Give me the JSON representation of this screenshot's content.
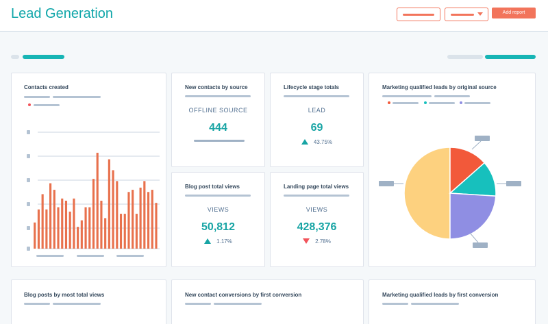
{
  "header": {
    "title": "Lead Generation",
    "add_report_label": "Add report",
    "accent_color": "#f2745b",
    "brand_color": "#0fa6a9"
  },
  "cards": {
    "contacts_created": {
      "title": "Contacts created"
    },
    "new_contacts_by_source": {
      "title": "New contacts by source",
      "stat_label": "OFFLINE SOURCE",
      "value": "444"
    },
    "lifecycle_stage_totals": {
      "title": "Lifecycle stage totals",
      "stat_label": "LEAD",
      "value": "69",
      "delta": "43.75%",
      "trend": "up"
    },
    "mql_by_original_source": {
      "title": "Marketing qualified leads by original source"
    },
    "blog_post_total_views": {
      "title": "Blog post total views",
      "stat_label": "VIEWS",
      "value": "50,812",
      "delta": "1.17%",
      "trend": "up"
    },
    "landing_page_total_views": {
      "title": "Landing page total views",
      "stat_label": "VIEWS",
      "value": "428,376",
      "delta": "2.78%",
      "trend": "down"
    },
    "blog_posts_most_views": {
      "title": "Blog posts by most total views"
    },
    "contact_conversions": {
      "title": "New contact conversions by first conversion"
    },
    "mql_first_conversion": {
      "title": "Marketing qualified leads by first conversion"
    }
  },
  "chart_data": [
    {
      "type": "bar",
      "values": [
        12,
        18,
        25,
        18,
        30,
        27,
        19,
        23,
        22,
        17,
        23,
        10,
        13,
        19,
        19,
        32,
        44,
        22,
        14,
        41,
        36,
        31,
        16,
        16,
        26,
        27,
        16,
        28,
        31,
        26,
        27,
        21
      ],
      "color": "#e8714d"
    },
    {
      "type": "pie",
      "values": [
        50,
        13.5,
        12.5,
        24
      ],
      "colors": [
        "#fdd17f",
        "#f2593a",
        "#17c0bd",
        "#8f8ee3"
      ]
    }
  ]
}
